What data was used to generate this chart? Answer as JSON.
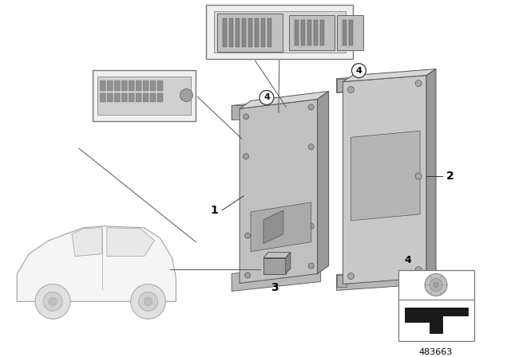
{
  "background_color": "#ffffff",
  "part_number": "483663",
  "line_color": "#555555",
  "face_color_main": "#c0c0c0",
  "face_color_side": "#999999",
  "face_color_top": "#d8d8d8",
  "face_color_unit2": "#c8c8c8",
  "inset_bg": "#f2f2f2",
  "inset_border": "#888888",
  "label_color": "#000000",
  "car_body_color": "#f0f0f0",
  "car_line_color": "#aaaaaa",
  "part3_color": "#a8a8a8",
  "part4_nut_color": "#b8b8b8",
  "part4_bracket_color": "#222222",
  "connector_color": "#909090",
  "connector_dark": "#666666"
}
